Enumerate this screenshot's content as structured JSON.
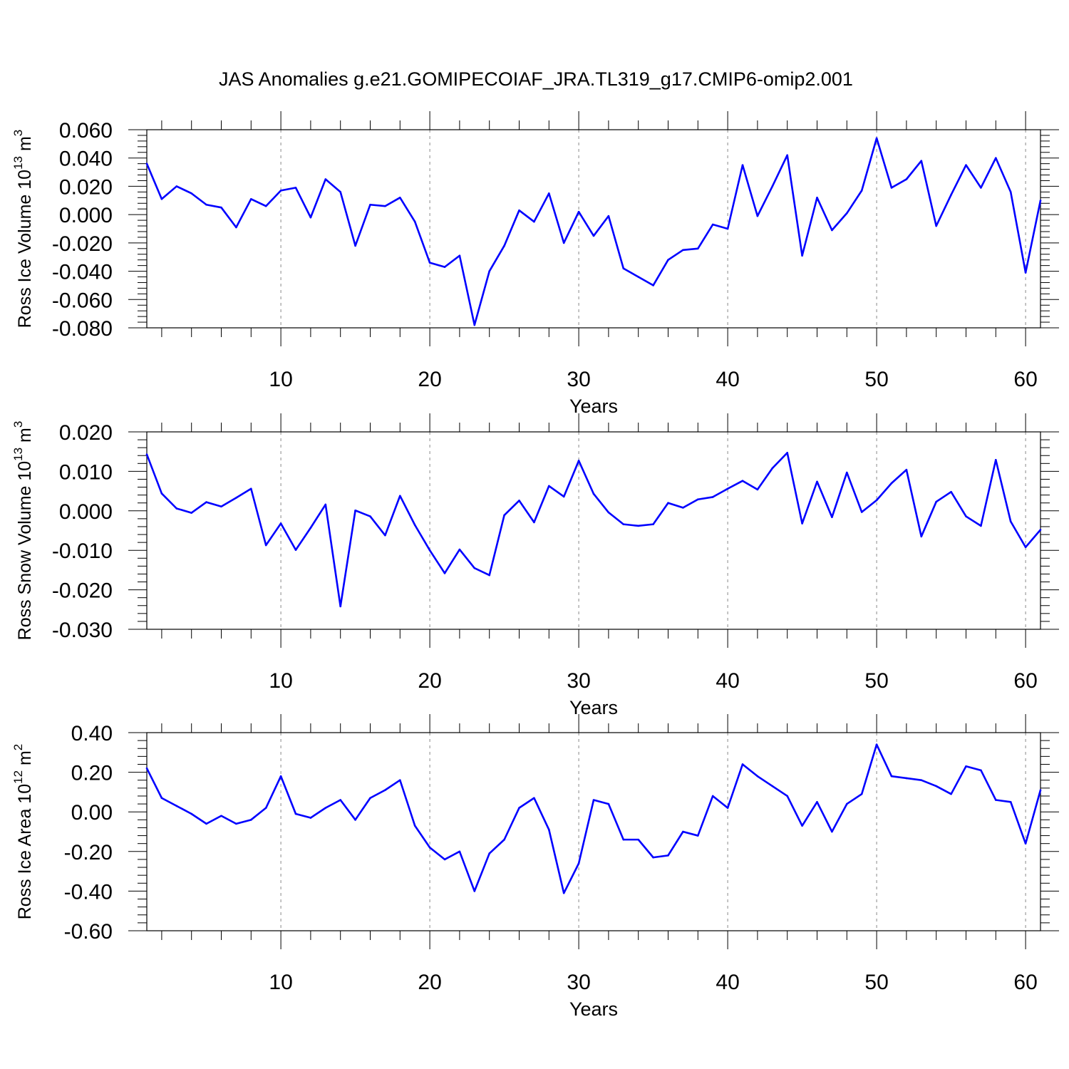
{
  "title": "JAS Anomalies g.e21.GOMIPECOIAF_JRA.TL319_g17.CMIP6-omip2.001",
  "colors": {
    "line": "#0000ff",
    "axis": "#000000",
    "grid": "#888888",
    "background": "#ffffff"
  },
  "chart_data": [
    {
      "type": "line",
      "ylabel": {
        "main": "Ross Ice Volume 10",
        "sup": "13",
        "mid": " m",
        "sup2": "3"
      },
      "xlabel": "Years",
      "xlim": [
        1,
        61
      ],
      "ylim": [
        -0.08,
        0.06
      ],
      "xticks": [
        10,
        20,
        30,
        40,
        50,
        60
      ],
      "xtick_labels": [
        "10",
        "20",
        "30",
        "40",
        "50",
        "60"
      ],
      "yticks": [
        -0.08,
        -0.06,
        -0.04,
        -0.02,
        0.0,
        0.02,
        0.04,
        0.06
      ],
      "ytick_labels": [
        "-0.080",
        "-0.060",
        "-0.040",
        "-0.020",
        "0.000",
        "0.020",
        "0.040",
        "0.060"
      ],
      "grid": "vertical dashed at x ticks",
      "series": [
        {
          "x": [
            1,
            2,
            3,
            4,
            5,
            6,
            7,
            8,
            9,
            10,
            11,
            12,
            13,
            14,
            15,
            16,
            17,
            18,
            19,
            20,
            21,
            22,
            23,
            24,
            25,
            26,
            27,
            28,
            29,
            30,
            31,
            32,
            33,
            34,
            35,
            36,
            37,
            38,
            39,
            40,
            41,
            42,
            43,
            44,
            45,
            46,
            47,
            48,
            49,
            50,
            51,
            52,
            53,
            54,
            55,
            56,
            57,
            58,
            59,
            60,
            61
          ],
          "values": [
            0.036,
            0.011,
            0.02,
            0.015,
            0.007,
            0.005,
            -0.009,
            0.011,
            0.006,
            0.017,
            0.019,
            -0.002,
            0.025,
            0.016,
            -0.022,
            0.007,
            0.006,
            0.012,
            -0.005,
            -0.034,
            -0.037,
            -0.029,
            -0.078,
            -0.04,
            -0.022,
            0.003,
            -0.005,
            0.015,
            -0.02,
            0.002,
            -0.015,
            -0.001,
            -0.038,
            -0.044,
            -0.05,
            -0.032,
            -0.025,
            -0.024,
            -0.007,
            -0.01,
            0.035,
            -0.001,
            0.02,
            0.042,
            -0.029,
            0.012,
            -0.011,
            0.001,
            0.017,
            0.054,
            0.019,
            0.025,
            0.038,
            -0.008,
            0.014,
            0.035,
            0.019,
            0.04,
            0.016,
            -0.041,
            0.01
          ]
        }
      ]
    },
    {
      "type": "line",
      "ylabel": {
        "main": "Ross Snow Volume 10",
        "sup": "13",
        "mid": " m",
        "sup2": "3"
      },
      "xlabel": "Years",
      "xlim": [
        1,
        61
      ],
      "ylim": [
        -0.03,
        0.02
      ],
      "xticks": [
        10,
        20,
        30,
        40,
        50,
        60
      ],
      "xtick_labels": [
        "10",
        "20",
        "30",
        "40",
        "50",
        "60"
      ],
      "yticks": [
        -0.03,
        -0.02,
        -0.01,
        0.0,
        0.01,
        0.02
      ],
      "ytick_labels": [
        "-0.030",
        "-0.020",
        "-0.010",
        "0.000",
        "0.010",
        "0.020"
      ],
      "grid": "vertical dashed at x ticks",
      "series": [
        {
          "x": [
            1,
            2,
            3,
            4,
            5,
            6,
            7,
            8,
            9,
            10,
            11,
            12,
            13,
            14,
            15,
            16,
            17,
            18,
            19,
            20,
            21,
            22,
            23,
            24,
            25,
            26,
            27,
            28,
            29,
            30,
            31,
            32,
            33,
            34,
            35,
            36,
            37,
            38,
            39,
            40,
            41,
            42,
            43,
            44,
            45,
            46,
            47,
            48,
            49,
            50,
            51,
            52,
            53,
            54,
            55,
            56,
            57,
            58,
            59,
            60,
            61
          ],
          "values": [
            0.0143,
            0.0044,
            0.0006,
            -0.0005,
            0.0022,
            0.0011,
            0.0033,
            0.0056,
            -0.0087,
            -0.0032,
            -0.0099,
            -0.0043,
            0.0016,
            -0.0242,
            0.0001,
            -0.0014,
            -0.0062,
            0.0038,
            -0.0036,
            -0.01,
            -0.0158,
            -0.0098,
            -0.0145,
            -0.0163,
            -0.0011,
            0.0026,
            -0.0029,
            0.0063,
            0.0036,
            0.0127,
            0.0043,
            -0.0004,
            -0.0034,
            -0.0038,
            -0.0034,
            0.002,
            0.0008,
            0.0029,
            0.0035,
            0.0056,
            0.0076,
            0.0054,
            0.0108,
            0.0147,
            -0.0032,
            0.0074,
            -0.0016,
            0.0097,
            -0.0003,
            0.0027,
            0.007,
            0.0104,
            -0.0065,
            0.0023,
            0.0048,
            -0.0014,
            -0.0038,
            0.0129,
            -0.0027,
            -0.0092,
            -0.0048
          ]
        }
      ]
    },
    {
      "type": "line",
      "ylabel": {
        "main": "Ross Ice Area 10",
        "sup": "12",
        "mid": " m",
        "sup2": "2"
      },
      "xlabel": "Years",
      "xlim": [
        1,
        61
      ],
      "ylim": [
        -0.6,
        0.4
      ],
      "xticks": [
        10,
        20,
        30,
        40,
        50,
        60
      ],
      "xtick_labels": [
        "10",
        "20",
        "30",
        "40",
        "50",
        "60"
      ],
      "yticks": [
        -0.6,
        -0.4,
        -0.2,
        0.0,
        0.2,
        0.4
      ],
      "ytick_labels": [
        "-0.60",
        "-0.40",
        "-0.20",
        "0.00",
        "0.20",
        "0.40"
      ],
      "grid": "vertical dashed at x ticks",
      "series": [
        {
          "x": [
            1,
            2,
            3,
            4,
            5,
            6,
            7,
            8,
            9,
            10,
            11,
            12,
            13,
            14,
            15,
            16,
            17,
            18,
            19,
            20,
            21,
            22,
            23,
            24,
            25,
            26,
            27,
            28,
            29,
            30,
            31,
            32,
            33,
            34,
            35,
            36,
            37,
            38,
            39,
            40,
            41,
            42,
            43,
            44,
            45,
            46,
            47,
            48,
            49,
            50,
            51,
            52,
            53,
            54,
            55,
            56,
            57,
            58,
            59,
            60,
            61
          ],
          "values": [
            0.22,
            0.07,
            0.03,
            -0.01,
            -0.06,
            -0.02,
            -0.06,
            -0.04,
            0.02,
            0.18,
            -0.01,
            -0.03,
            0.02,
            0.06,
            -0.04,
            0.07,
            0.11,
            0.16,
            -0.07,
            -0.18,
            -0.24,
            -0.2,
            -0.4,
            -0.21,
            -0.14,
            0.02,
            0.07,
            -0.09,
            -0.41,
            -0.26,
            0.06,
            0.04,
            -0.14,
            -0.14,
            -0.23,
            -0.22,
            -0.1,
            -0.12,
            0.08,
            0.02,
            0.24,
            0.18,
            0.13,
            0.08,
            -0.07,
            0.05,
            -0.1,
            0.04,
            0.09,
            0.34,
            0.18,
            0.17,
            0.16,
            0.13,
            0.09,
            0.23,
            0.21,
            0.06,
            0.05,
            -0.16,
            0.11
          ]
        }
      ]
    }
  ]
}
